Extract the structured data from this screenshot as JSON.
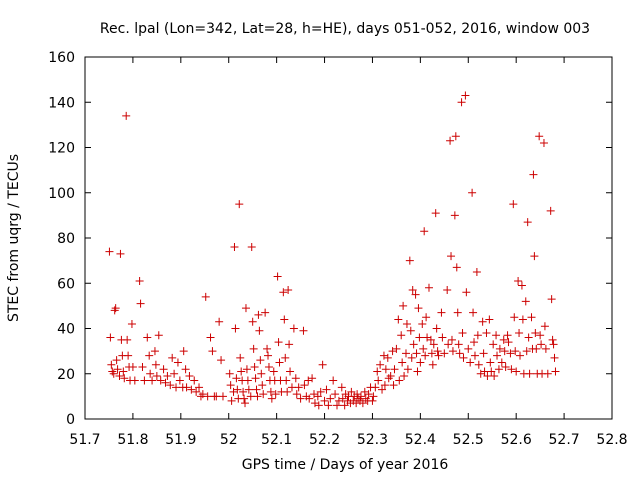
{
  "chart_data": {
    "type": "scatter",
    "title": "Rec. lpal (Lon=342, Lat=28, h=HE), days 051-052, 2016, window 003",
    "xlabel": "GPS time / Days of year 2016",
    "ylabel": "STEC from uqrg / TECUs",
    "xlim": [
      51.7,
      52.8
    ],
    "ylim": [
      0,
      160
    ],
    "xticks": [
      "51.7",
      "51.8",
      "51.9",
      "52",
      "52.1",
      "52.2",
      "52.3",
      "52.4",
      "52.5",
      "52.6",
      "52.7",
      "52.8"
    ],
    "yticks": [
      "0",
      "20",
      "40",
      "60",
      "80",
      "100",
      "120",
      "140",
      "160"
    ],
    "grid": false,
    "marker": "+",
    "color": "#cc0000",
    "series": [
      {
        "points": [
          [
            51.751,
            74
          ],
          [
            51.753,
            36
          ],
          [
            51.755,
            24
          ],
          [
            51.757,
            21
          ],
          [
            51.76,
            20
          ],
          [
            51.762,
            48
          ],
          [
            51.764,
            49
          ],
          [
            51.766,
            26
          ],
          [
            51.768,
            22
          ],
          [
            51.772,
            19
          ],
          [
            51.774,
            73
          ],
          [
            51.776,
            35
          ],
          [
            51.778,
            28
          ],
          [
            51.78,
            21
          ],
          [
            51.782,
            18
          ],
          [
            51.786,
            134
          ],
          [
            51.788,
            35
          ],
          [
            51.79,
            28
          ],
          [
            51.792,
            23
          ],
          [
            51.794,
            17
          ],
          [
            51.798,
            42
          ],
          [
            51.8,
            23
          ],
          [
            51.804,
            17
          ],
          [
            51.814,
            61
          ],
          [
            51.816,
            51
          ],
          [
            51.82,
            23
          ],
          [
            51.824,
            17
          ],
          [
            51.83,
            36
          ],
          [
            51.834,
            28
          ],
          [
            51.836,
            20
          ],
          [
            51.84,
            17
          ],
          [
            51.846,
            30
          ],
          [
            51.848,
            24
          ],
          [
            51.85,
            19
          ],
          [
            51.854,
            37
          ],
          [
            51.858,
            17
          ],
          [
            51.864,
            22
          ],
          [
            51.868,
            16
          ],
          [
            51.872,
            19
          ],
          [
            51.878,
            15
          ],
          [
            51.882,
            27
          ],
          [
            51.886,
            20
          ],
          [
            51.89,
            14
          ],
          [
            51.894,
            25
          ],
          [
            51.898,
            17
          ],
          [
            51.904,
            14
          ],
          [
            51.906,
            30
          ],
          [
            51.91,
            22
          ],
          [
            51.912,
            14
          ],
          [
            51.918,
            19
          ],
          [
            51.922,
            13
          ],
          [
            51.928,
            17
          ],
          [
            51.932,
            12
          ],
          [
            51.938,
            14
          ],
          [
            51.942,
            10
          ],
          [
            51.946,
            11
          ],
          [
            51.952,
            54
          ],
          [
            51.956,
            10
          ],
          [
            51.962,
            36
          ],
          [
            51.966,
            30
          ],
          [
            51.97,
            10
          ],
          [
            51.974,
            10
          ],
          [
            51.98,
            43
          ],
          [
            51.984,
            26
          ],
          [
            51.988,
            10
          ],
          [
            52.002,
            20
          ],
          [
            52.004,
            15
          ],
          [
            52.006,
            8
          ],
          [
            52.01,
            12
          ],
          [
            52.012,
            76
          ],
          [
            52.014,
            40
          ],
          [
            52.016,
            18
          ],
          [
            52.018,
            13
          ],
          [
            52.02,
            9
          ],
          [
            52.022,
            95
          ],
          [
            52.024,
            27
          ],
          [
            52.026,
            21
          ],
          [
            52.028,
            17
          ],
          [
            52.03,
            12
          ],
          [
            52.032,
            9
          ],
          [
            52.034,
            7
          ],
          [
            52.036,
            49
          ],
          [
            52.038,
            22
          ],
          [
            52.04,
            17
          ],
          [
            52.042,
            13
          ],
          [
            52.046,
            10
          ],
          [
            52.048,
            76
          ],
          [
            52.05,
            43
          ],
          [
            52.052,
            31
          ],
          [
            52.054,
            23
          ],
          [
            52.056,
            18
          ],
          [
            52.058,
            13
          ],
          [
            52.06,
            10
          ],
          [
            52.062,
            46
          ],
          [
            52.064,
            39
          ],
          [
            52.066,
            26
          ],
          [
            52.068,
            20
          ],
          [
            52.07,
            15
          ],
          [
            52.072,
            11
          ],
          [
            52.076,
            47
          ],
          [
            52.08,
            31
          ],
          [
            52.082,
            28
          ],
          [
            52.084,
            23
          ],
          [
            52.086,
            17
          ],
          [
            52.088,
            12
          ],
          [
            52.09,
            9
          ],
          [
            52.094,
            21
          ],
          [
            52.096,
            17
          ],
          [
            52.098,
            11
          ],
          [
            52.102,
            63
          ],
          [
            52.104,
            34
          ],
          [
            52.106,
            25
          ],
          [
            52.108,
            17
          ],
          [
            52.11,
            12
          ],
          [
            52.114,
            56
          ],
          [
            52.116,
            44
          ],
          [
            52.118,
            27
          ],
          [
            52.12,
            17
          ],
          [
            52.122,
            12
          ],
          [
            52.124,
            57
          ],
          [
            52.126,
            33
          ],
          [
            52.128,
            21
          ],
          [
            52.132,
            14
          ],
          [
            52.136,
            40
          ],
          [
            52.14,
            18
          ],
          [
            52.142,
            11
          ],
          [
            52.146,
            14
          ],
          [
            52.15,
            9
          ],
          [
            52.156,
            39
          ],
          [
            52.158,
            15
          ],
          [
            52.162,
            10
          ],
          [
            52.166,
            17
          ],
          [
            52.168,
            9
          ],
          [
            52.174,
            18
          ],
          [
            52.178,
            11
          ],
          [
            52.18,
            7
          ],
          [
            52.186,
            10
          ],
          [
            52.188,
            6
          ],
          [
            52.192,
            12
          ],
          [
            52.196,
            24
          ],
          [
            52.2,
            8
          ],
          [
            52.204,
            13
          ],
          [
            52.208,
            6
          ],
          [
            52.212,
            9
          ],
          [
            52.218,
            17
          ],
          [
            52.222,
            11
          ],
          [
            52.226,
            6
          ],
          [
            52.23,
            8
          ],
          [
            52.236,
            14
          ],
          [
            52.238,
            9
          ],
          [
            52.242,
            6
          ],
          [
            52.244,
            11
          ],
          [
            52.248,
            8
          ],
          [
            52.25,
            10
          ],
          [
            52.254,
            7
          ],
          [
            52.256,
            12
          ],
          [
            52.26,
            8
          ],
          [
            52.262,
            10
          ],
          [
            52.266,
            7
          ],
          [
            52.268,
            11
          ],
          [
            52.27,
            9
          ],
          [
            52.274,
            8
          ],
          [
            52.276,
            10
          ],
          [
            52.28,
            7
          ],
          [
            52.284,
            12
          ],
          [
            52.286,
            9
          ],
          [
            52.29,
            8
          ],
          [
            52.292,
            11
          ],
          [
            52.296,
            14
          ],
          [
            52.3,
            8
          ],
          [
            52.302,
            10
          ],
          [
            52.306,
            14
          ],
          [
            52.31,
            21
          ],
          [
            52.312,
            17
          ],
          [
            52.316,
            24
          ],
          [
            52.32,
            13
          ],
          [
            52.324,
            28
          ],
          [
            52.326,
            15
          ],
          [
            52.328,
            22
          ],
          [
            52.332,
            27
          ],
          [
            52.334,
            18
          ],
          [
            52.338,
            19
          ],
          [
            52.342,
            30
          ],
          [
            52.344,
            15
          ],
          [
            52.346,
            22
          ],
          [
            52.35,
            31
          ],
          [
            52.354,
            44
          ],
          [
            52.356,
            17
          ],
          [
            52.36,
            37
          ],
          [
            52.362,
            25
          ],
          [
            52.364,
            50
          ],
          [
            52.366,
            19
          ],
          [
            52.37,
            29
          ],
          [
            52.372,
            42
          ],
          [
            52.374,
            22
          ],
          [
            52.378,
            70
          ],
          [
            52.38,
            39
          ],
          [
            52.382,
            27
          ],
          [
            52.384,
            57
          ],
          [
            52.386,
            33
          ],
          [
            52.39,
            55
          ],
          [
            52.392,
            29
          ],
          [
            52.394,
            21
          ],
          [
            52.396,
            49
          ],
          [
            52.398,
            36
          ],
          [
            52.4,
            25
          ],
          [
            52.404,
            42
          ],
          [
            52.406,
            31
          ],
          [
            52.408,
            83
          ],
          [
            52.41,
            28
          ],
          [
            52.412,
            45
          ],
          [
            52.414,
            36
          ],
          [
            52.418,
            58
          ],
          [
            52.422,
            35
          ],
          [
            52.424,
            29
          ],
          [
            52.426,
            24
          ],
          [
            52.428,
            33
          ],
          [
            52.432,
            91
          ],
          [
            52.434,
            40
          ],
          [
            52.436,
            30
          ],
          [
            52.438,
            28
          ],
          [
            52.444,
            47
          ],
          [
            52.446,
            36
          ],
          [
            52.45,
            29
          ],
          [
            52.456,
            57
          ],
          [
            52.458,
            33
          ],
          [
            52.462,
            123
          ],
          [
            52.464,
            72
          ],
          [
            52.466,
            35
          ],
          [
            52.468,
            30
          ],
          [
            52.472,
            90
          ],
          [
            52.474,
            125
          ],
          [
            52.476,
            67
          ],
          [
            52.478,
            47
          ],
          [
            52.48,
            33
          ],
          [
            52.482,
            29
          ],
          [
            52.486,
            140
          ],
          [
            52.488,
            38
          ],
          [
            52.49,
            27
          ],
          [
            52.494,
            143
          ],
          [
            52.496,
            56
          ],
          [
            52.5,
            31
          ],
          [
            52.504,
            25
          ],
          [
            52.508,
            100
          ],
          [
            52.51,
            47
          ],
          [
            52.512,
            34
          ],
          [
            52.514,
            28
          ],
          [
            52.518,
            65
          ],
          [
            52.52,
            37
          ],
          [
            52.522,
            24
          ],
          [
            52.526,
            20
          ],
          [
            52.53,
            43
          ],
          [
            52.532,
            29
          ],
          [
            52.534,
            21
          ],
          [
            52.538,
            38
          ],
          [
            52.54,
            19
          ],
          [
            52.544,
            44
          ],
          [
            52.546,
            25
          ],
          [
            52.548,
            21
          ],
          [
            52.552,
            33
          ],
          [
            52.554,
            19
          ],
          [
            52.558,
            37
          ],
          [
            52.56,
            28
          ],
          [
            52.564,
            22
          ],
          [
            52.566,
            31
          ],
          [
            52.57,
            25
          ],
          [
            52.574,
            35
          ],
          [
            52.576,
            30
          ],
          [
            52.578,
            23
          ],
          [
            52.582,
            37
          ],
          [
            52.584,
            34
          ],
          [
            52.588,
            29
          ],
          [
            52.59,
            22
          ],
          [
            52.594,
            95
          ],
          [
            52.596,
            45
          ],
          [
            52.598,
            30
          ],
          [
            52.6,
            21
          ],
          [
            52.604,
            61
          ],
          [
            52.606,
            38
          ],
          [
            52.608,
            28
          ],
          [
            52.612,
            59
          ],
          [
            52.614,
            44
          ],
          [
            52.616,
            20
          ],
          [
            52.62,
            52
          ],
          [
            52.622,
            30
          ],
          [
            52.624,
            87
          ],
          [
            52.626,
            36
          ],
          [
            52.628,
            20
          ],
          [
            52.632,
            45
          ],
          [
            52.634,
            31
          ],
          [
            52.636,
            108
          ],
          [
            52.638,
            72
          ],
          [
            52.64,
            38
          ],
          [
            52.642,
            31
          ],
          [
            52.644,
            20
          ],
          [
            52.648,
            125
          ],
          [
            52.65,
            37
          ],
          [
            52.652,
            33
          ],
          [
            52.654,
            20
          ],
          [
            52.658,
            122
          ],
          [
            52.66,
            41
          ],
          [
            52.662,
            31
          ],
          [
            52.666,
            20
          ],
          [
            52.672,
            92
          ],
          [
            52.674,
            53
          ],
          [
            52.676,
            35
          ],
          [
            52.678,
            33
          ],
          [
            52.68,
            27
          ],
          [
            52.682,
            21
          ]
        ]
      }
    ]
  }
}
